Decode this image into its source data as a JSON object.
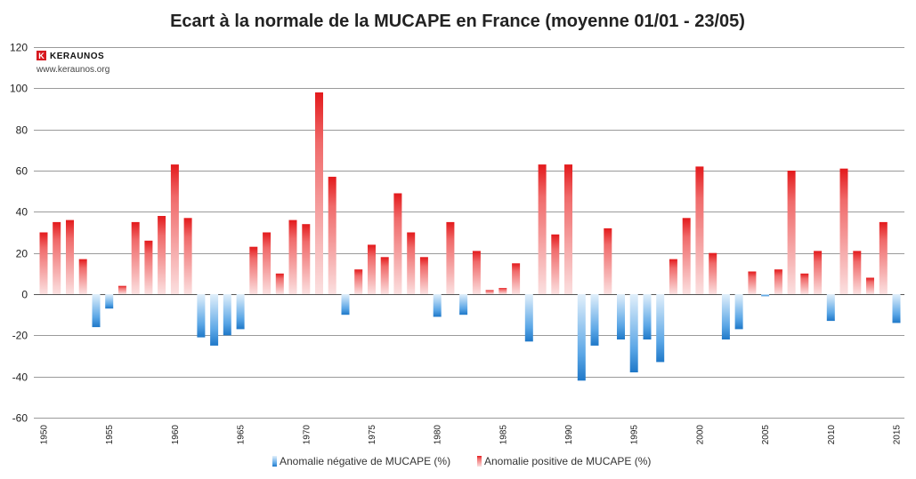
{
  "chart_data": {
    "type": "bar",
    "title": "Ecart à la normale de la MUCAPE en France (moyenne 01/01 - 23/05)",
    "xlabel": "",
    "ylabel": "",
    "ylim": [
      -60,
      120
    ],
    "y_ticks": [
      -60,
      -40,
      -20,
      0,
      20,
      40,
      60,
      80,
      100,
      120
    ],
    "x_tick_labels": [
      "1950",
      "1955",
      "1960",
      "1965",
      "1970",
      "1975",
      "1980",
      "1985",
      "1990",
      "1995",
      "2000",
      "2005",
      "2010",
      "2015"
    ],
    "grid": true,
    "legend_placement": "bottom",
    "categories": [
      1950,
      1951,
      1952,
      1953,
      1954,
      1955,
      1956,
      1957,
      1958,
      1959,
      1960,
      1961,
      1962,
      1963,
      1964,
      1965,
      1966,
      1967,
      1968,
      1969,
      1970,
      1971,
      1972,
      1973,
      1974,
      1975,
      1976,
      1977,
      1978,
      1979,
      1980,
      1981,
      1982,
      1983,
      1984,
      1985,
      1986,
      1987,
      1988,
      1989,
      1990,
      1991,
      1992,
      1993,
      1994,
      1995,
      1996,
      1997,
      1998,
      1999,
      2000,
      2001,
      2002,
      2003,
      2004,
      2005,
      2006,
      2007,
      2008,
      2009,
      2010,
      2011,
      2012,
      2013,
      2014,
      2015
    ],
    "values": [
      30,
      35,
      36,
      17,
      -16,
      -7,
      4,
      35,
      26,
      38,
      63,
      37,
      -21,
      -25,
      -20,
      -17,
      23,
      30,
      10,
      36,
      34,
      98,
      57,
      -10,
      12,
      24,
      18,
      49,
      30,
      18,
      -11,
      35,
      -10,
      21,
      2,
      3,
      15,
      -23,
      63,
      29,
      63,
      -42,
      -25,
      32,
      -22,
      -38,
      -22,
      -33,
      17,
      37,
      62,
      20,
      -22,
      -17,
      11,
      -1,
      12,
      60,
      10,
      21,
      -13,
      61,
      21,
      8,
      35,
      -14
    ],
    "series": [
      {
        "name": "Anomalie négative de MUCAPE (%)",
        "color": "#2f86d6"
      },
      {
        "name": "Anomalie positive de MUCAPE (%)",
        "color": "#e31a1c"
      }
    ]
  },
  "branding": {
    "logo_icon": "keraunos-k-icon",
    "name": "KERAUNOS",
    "url": "www.keraunos.org"
  }
}
